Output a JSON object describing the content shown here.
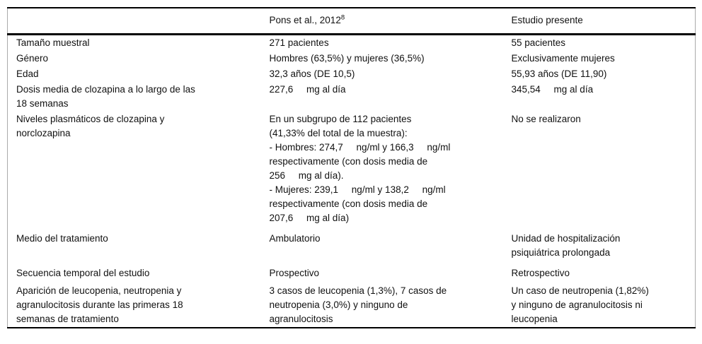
{
  "table": {
    "headers": {
      "col1": "",
      "col2_main": "Pons et al., 2012",
      "col2_sup": "8",
      "col3": "Estudio presente"
    },
    "rows": [
      {
        "label": "Tamaño muestral",
        "pons": "271 pacientes",
        "presente": "55 pacientes"
      },
      {
        "label": "Género",
        "pons": "Hombres (63,5%) y mujeres (36,5%)",
        "presente": "Exclusivamente mujeres"
      },
      {
        "label": "Edad",
        "pons": "32,3 años (DE 10,5)",
        "presente": "55,93 años (DE 11,90)"
      },
      {
        "label": "Dosis media de clozapina a lo largo de las\n18 semanas",
        "pons": "227,6     mg al día",
        "presente": "345,54     mg al día"
      },
      {
        "label": "Niveles plasmáticos de clozapina y\nnorclozapina",
        "pons": "En un subgrupo de 112 pacientes\n(41,33% del total de la muestra):\n- Hombres: 274,7     ng/ml y 166,3     ng/ml\nrespectivamente (con dosis media de\n256     mg al día).\n- Mujeres: 239,1     ng/ml y 138,2     ng/ml\nrespectivamente (con dosis media de\n207,6     mg al día)",
        "presente": "No se realizaron"
      },
      {
        "label": "Medio del tratamiento",
        "pons": "Ambulatorio",
        "presente": "Unidad de hospitalización\npsiquiátrica prolongada"
      },
      {
        "label": "Secuencia temporal del estudio",
        "pons": "Prospectivo",
        "presente": "Retrospectivo"
      },
      {
        "label": "Aparición de leucopenia, neutropenia y\nagranulocitosis durante las primeras 18\nsemanas de tratamiento",
        "pons": "3 casos de leucopenia (1,3%), 7 casos de\nneutropenia (3,0%) y ninguno de\nagranulocitosis",
        "presente": "Un caso de neutropenia (1,82%)\ny ninguno de agranulocitosis ni\nleucopenia"
      }
    ]
  },
  "colors": {
    "rule_dark": "#000000",
    "rule_light": "#ababab",
    "text": "#111111",
    "background": "#ffffff"
  }
}
